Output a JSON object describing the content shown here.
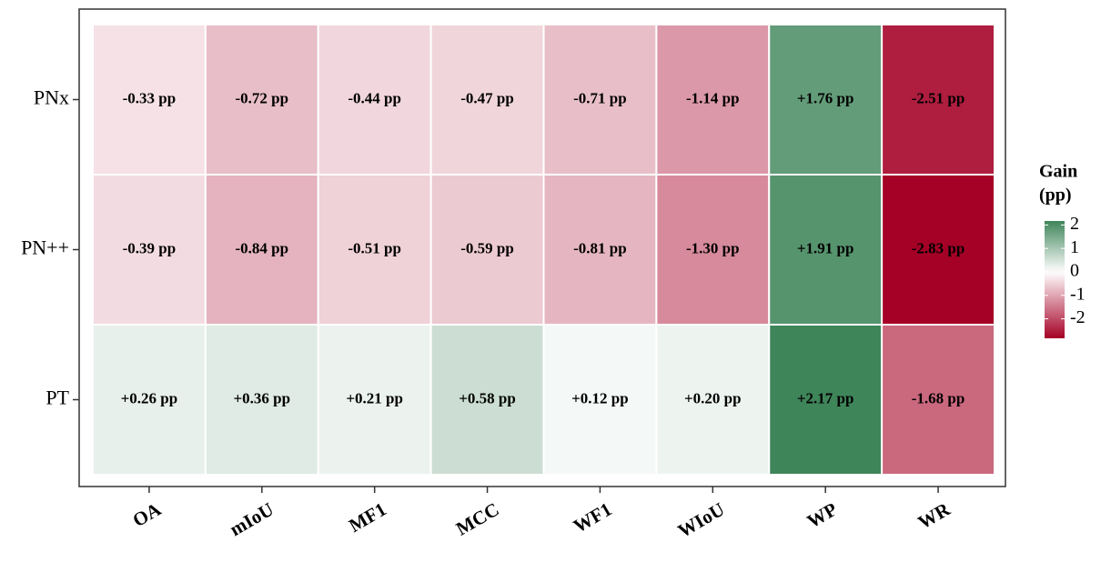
{
  "chart_data": {
    "type": "heatmap",
    "rows": [
      "PNx",
      "PN++",
      "PT"
    ],
    "columns": [
      "OA",
      "mIoU",
      "MF1",
      "MCC",
      "WF1",
      "WIoU",
      "WP",
      "WR"
    ],
    "values": [
      [
        -0.33,
        -0.72,
        -0.44,
        -0.47,
        -0.71,
        -1.14,
        1.76,
        -2.51
      ],
      [
        -0.39,
        -0.84,
        -0.51,
        -0.59,
        -0.81,
        -1.3,
        1.91,
        -2.83
      ],
      [
        0.26,
        0.36,
        0.21,
        0.58,
        0.12,
        0.2,
        2.17,
        -1.68
      ]
    ],
    "value_labels": [
      [
        "-0.33 pp",
        "-0.72 pp",
        "-0.44 pp",
        "-0.47 pp",
        "-0.71 pp",
        "-1.14 pp",
        "+1.76 pp",
        "-2.51 pp"
      ],
      [
        "-0.39 pp",
        "-0.84 pp",
        "-0.51 pp",
        "-0.59 pp",
        "-0.81 pp",
        "-1.30 pp",
        "+1.91 pp",
        "-2.83 pp"
      ],
      [
        "+0.26 pp",
        "+0.36 pp",
        "+0.21 pp",
        "+0.58 pp",
        "+0.12 pp",
        "+0.20 pp",
        "+2.17 pp",
        "-1.68 pp"
      ]
    ],
    "legend_title": [
      "Gain",
      "(pp)"
    ],
    "color_range": [
      -2.83,
      2.17
    ],
    "colors": {
      "low": "#a50026",
      "mid": "#ffffff",
      "high": "#3f855a"
    },
    "legend_ticks": [
      2,
      1,
      0,
      -1,
      -2
    ]
  }
}
